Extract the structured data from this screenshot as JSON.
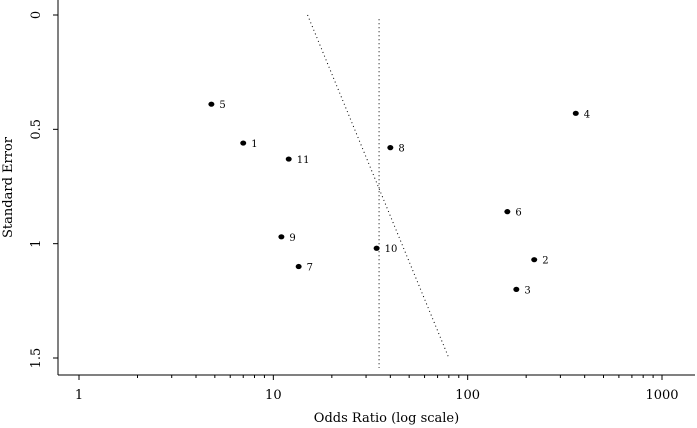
{
  "chart_data": {
    "type": "scatter",
    "title": "",
    "xlabel": "Odds Ratio (log scale)",
    "ylabel": "Standard Error",
    "x_scale": "log",
    "xlim": [
      1,
      1000
    ],
    "ylim": [
      0,
      1.5
    ],
    "y_inverted": true,
    "x_ticks": [
      1,
      10,
      100,
      1000
    ],
    "x_tick_labels": [
      "1",
      "10",
      "100",
      "1000"
    ],
    "y_ticks": [
      0,
      0.5,
      1,
      1.5
    ],
    "y_tick_labels": [
      "0",
      "0.5",
      "1",
      "1.5"
    ],
    "grid": false,
    "points": [
      {
        "label": "1",
        "x": 7.0,
        "y": 0.56
      },
      {
        "label": "2",
        "x": 220,
        "y": 1.07
      },
      {
        "label": "3",
        "x": 178,
        "y": 1.2
      },
      {
        "label": "4",
        "x": 360,
        "y": 0.43
      },
      {
        "label": "5",
        "x": 4.8,
        "y": 0.39
      },
      {
        "label": "6",
        "x": 160,
        "y": 0.86
      },
      {
        "label": "7",
        "x": 13.5,
        "y": 1.1
      },
      {
        "label": "8",
        "x": 40,
        "y": 0.58
      },
      {
        "label": "9",
        "x": 11,
        "y": 0.97
      },
      {
        "label": "10",
        "x": 34,
        "y": 1.02
      },
      {
        "label": "11",
        "x": 12,
        "y": 0.63
      }
    ],
    "reference_lines": [
      {
        "kind": "vertical",
        "x": 35,
        "y_range": [
          0.01,
          1.5
        ]
      },
      {
        "kind": "diagonal",
        "from": {
          "x": 15,
          "y": 0
        },
        "to": {
          "x": 80,
          "y": 1.5
        }
      }
    ]
  }
}
